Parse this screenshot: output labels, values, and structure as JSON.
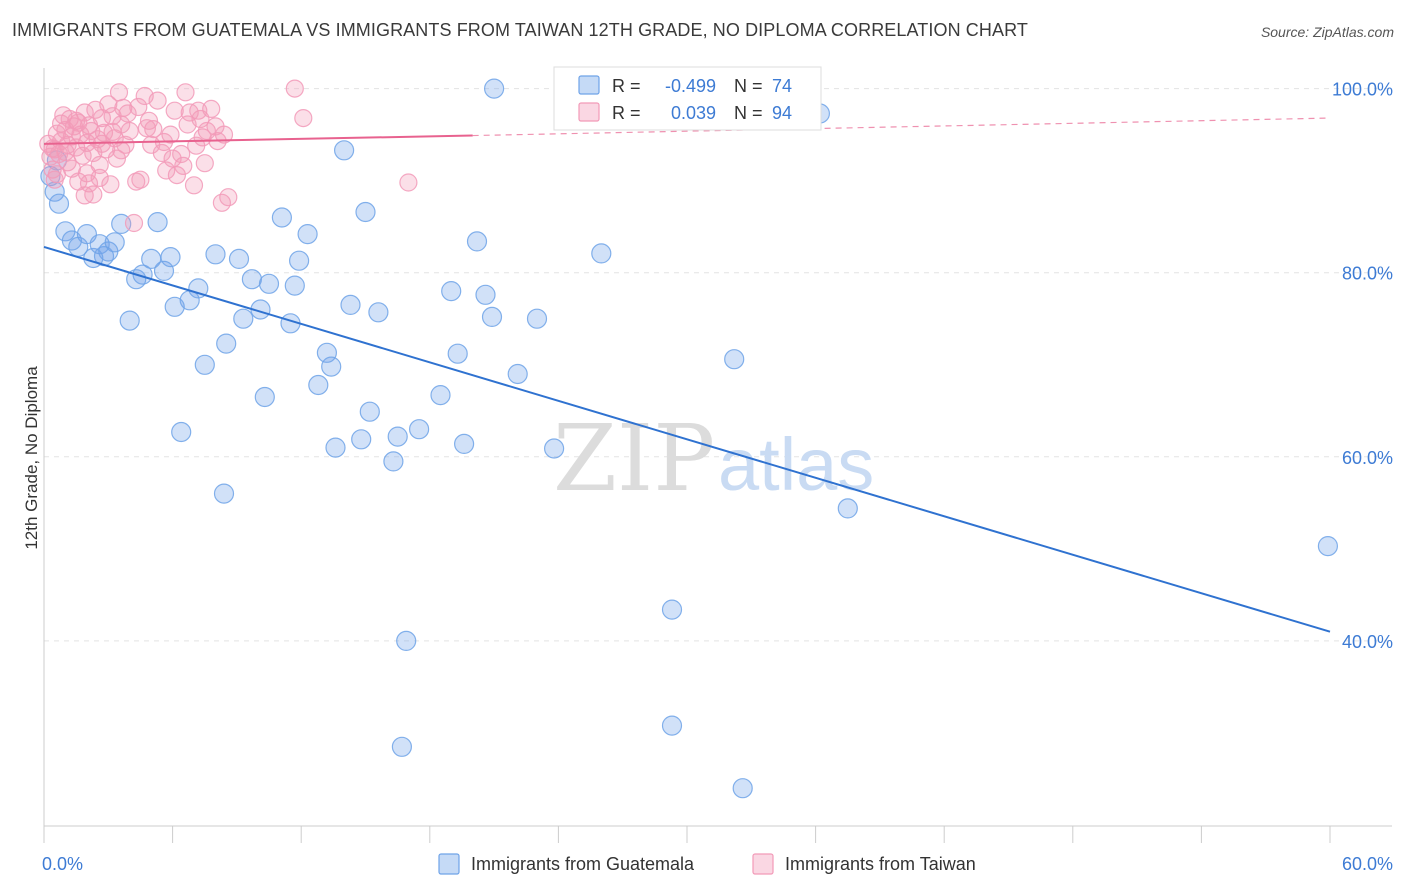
{
  "title": "IMMIGRANTS FROM GUATEMALA VS IMMIGRANTS FROM TAIWAN 12TH GRADE, NO DIPLOMA CORRELATION CHART",
  "source": "Source: ZipAtlas.com",
  "watermark": {
    "zip": "ZIP",
    "atlas": "atlas"
  },
  "colors": {
    "guatemala": "#6fa3e8",
    "guatemala_line": "#2f72d0",
    "taiwan": "#f29ab8",
    "taiwan_line": "#e8628f",
    "axis_text": "#3d7bd4"
  },
  "legend": {
    "r_label": "R =",
    "n_label": "N =",
    "rows": [
      {
        "series": "guatemala",
        "r": "-0.499",
        "n": "74"
      },
      {
        "series": "taiwan",
        "r": "0.039",
        "n": "94"
      }
    ]
  },
  "chart_data": {
    "type": "scatter",
    "title": "IMMIGRANTS FROM GUATEMALA VS IMMIGRANTS FROM TAIWAN 12TH GRADE, NO DIPLOMA CORRELATION CHART",
    "xlabel": "",
    "ylabel": "12th Grade, No Diploma",
    "xlim": [
      0,
      60
    ],
    "ylim": [
      20,
      103
    ],
    "x_tick_labels": [
      "0.0%",
      "60.0%"
    ],
    "y_ticks": [
      40,
      60,
      80,
      100
    ],
    "y_tick_labels": [
      "40.0%",
      "60.0%",
      "80.0%",
      "100.0%"
    ],
    "grid": true,
    "legend_position": "top-center",
    "series": [
      {
        "name": "Immigrants from Guatemala",
        "color": "#6fa3e8",
        "trend": {
          "x": [
            0,
            60
          ],
          "y": [
            82.8,
            41.0
          ]
        },
        "points": [
          [
            0.3,
            90.5
          ],
          [
            0.5,
            88.8
          ],
          [
            0.7,
            87.5
          ],
          [
            1.0,
            84.5
          ],
          [
            1.3,
            83.5
          ],
          [
            1.6,
            82.8
          ],
          [
            2.0,
            84.2
          ],
          [
            2.3,
            81.6
          ],
          [
            2.6,
            83.1
          ],
          [
            2.8,
            81.8
          ],
          [
            3.0,
            82.3
          ],
          [
            3.3,
            83.3
          ],
          [
            3.6,
            85.3
          ],
          [
            4.0,
            74.8
          ],
          [
            4.3,
            79.3
          ],
          [
            4.6,
            79.8
          ],
          [
            5.0,
            81.5
          ],
          [
            5.3,
            85.5
          ],
          [
            5.6,
            80.2
          ],
          [
            5.9,
            81.7
          ],
          [
            6.1,
            76.3
          ],
          [
            6.4,
            62.7
          ],
          [
            6.8,
            77.0
          ],
          [
            7.2,
            78.3
          ],
          [
            7.5,
            70.0
          ],
          [
            8.0,
            82.0
          ],
          [
            8.5,
            72.3
          ],
          [
            8.4,
            56.0
          ],
          [
            9.1,
            81.5
          ],
          [
            9.3,
            75.0
          ],
          [
            9.7,
            79.3
          ],
          [
            10.1,
            76.0
          ],
          [
            10.3,
            66.5
          ],
          [
            10.5,
            78.8
          ],
          [
            11.1,
            86.0
          ],
          [
            11.5,
            74.5
          ],
          [
            11.7,
            78.6
          ],
          [
            11.9,
            81.3
          ],
          [
            12.3,
            84.2
          ],
          [
            12.8,
            67.8
          ],
          [
            13.2,
            71.3
          ],
          [
            13.4,
            69.8
          ],
          [
            13.6,
            61.0
          ],
          [
            14.0,
            93.3
          ],
          [
            14.3,
            76.5
          ],
          [
            14.8,
            61.9
          ],
          [
            15.0,
            86.6
          ],
          [
            15.2,
            64.9
          ],
          [
            15.6,
            75.7
          ],
          [
            16.3,
            59.5
          ],
          [
            16.5,
            62.2
          ],
          [
            16.7,
            28.5
          ],
          [
            16.9,
            40.0
          ],
          [
            17.5,
            63.0
          ],
          [
            18.5,
            66.7
          ],
          [
            19.0,
            78.0
          ],
          [
            19.3,
            71.2
          ],
          [
            19.6,
            61.4
          ],
          [
            20.2,
            83.4
          ],
          [
            20.6,
            77.6
          ],
          [
            20.9,
            75.2
          ],
          [
            21.0,
            100.0
          ],
          [
            22.1,
            69.0
          ],
          [
            23.0,
            75.0
          ],
          [
            23.8,
            60.9
          ],
          [
            26.0,
            82.1
          ],
          [
            29.3,
            43.4
          ],
          [
            29.3,
            30.8
          ],
          [
            32.2,
            70.6
          ],
          [
            32.6,
            24.0
          ],
          [
            36.2,
            97.3
          ],
          [
            37.5,
            54.4
          ],
          [
            59.9,
            50.3
          ],
          [
            0.6,
            92.2
          ]
        ]
      },
      {
        "name": "Immigrants from Taiwan",
        "color": "#f29ab8",
        "trend": {
          "x": [
            0,
            20
          ],
          "y": [
            94.0,
            94.9
          ]
        },
        "trend_dashed": {
          "x": [
            20,
            60
          ],
          "y": [
            94.9,
            96.8
          ]
        },
        "points": [
          [
            0.2,
            94.0
          ],
          [
            0.3,
            92.6
          ],
          [
            0.4,
            91.2
          ],
          [
            0.5,
            90.1
          ],
          [
            0.5,
            93.4
          ],
          [
            0.6,
            95.1
          ],
          [
            0.7,
            92.9
          ],
          [
            0.8,
            96.2
          ],
          [
            0.8,
            94.3
          ],
          [
            0.9,
            97.1
          ],
          [
            1.0,
            95.5
          ],
          [
            1.0,
            93.1
          ],
          [
            1.1,
            92.0
          ],
          [
            1.2,
            96.7
          ],
          [
            1.3,
            94.8
          ],
          [
            1.3,
            91.3
          ],
          [
            1.4,
            95.9
          ],
          [
            1.5,
            93.6
          ],
          [
            1.6,
            96.3
          ],
          [
            1.6,
            89.9
          ],
          [
            1.7,
            95.0
          ],
          [
            1.8,
            92.7
          ],
          [
            1.9,
            97.4
          ],
          [
            2.0,
            94.1
          ],
          [
            2.0,
            90.8
          ],
          [
            2.1,
            96.0
          ],
          [
            2.2,
            95.4
          ],
          [
            2.3,
            93.0
          ],
          [
            2.3,
            88.5
          ],
          [
            2.4,
            97.7
          ],
          [
            2.5,
            94.5
          ],
          [
            2.6,
            91.7
          ],
          [
            2.7,
            96.8
          ],
          [
            2.8,
            95.2
          ],
          [
            2.9,
            93.4
          ],
          [
            3.0,
            98.3
          ],
          [
            3.1,
            89.6
          ],
          [
            3.2,
            97.0
          ],
          [
            3.3,
            94.6
          ],
          [
            3.4,
            92.4
          ],
          [
            3.5,
            99.6
          ],
          [
            3.6,
            96.1
          ],
          [
            3.8,
            93.9
          ],
          [
            3.9,
            97.3
          ],
          [
            4.0,
            95.4
          ],
          [
            4.2,
            85.4
          ],
          [
            4.4,
            98.0
          ],
          [
            4.5,
            90.1
          ],
          [
            4.7,
            99.2
          ],
          [
            4.9,
            96.5
          ],
          [
            5.1,
            95.6
          ],
          [
            5.3,
            98.7
          ],
          [
            5.5,
            93.0
          ],
          [
            5.7,
            91.1
          ],
          [
            5.9,
            95.0
          ],
          [
            6.1,
            97.6
          ],
          [
            6.2,
            90.6
          ],
          [
            6.4,
            92.9
          ],
          [
            6.6,
            99.6
          ],
          [
            6.8,
            97.4
          ],
          [
            7.0,
            89.5
          ],
          [
            7.1,
            93.8
          ],
          [
            7.3,
            96.7
          ],
          [
            7.5,
            91.9
          ],
          [
            7.8,
            97.8
          ],
          [
            8.1,
            94.3
          ],
          [
            8.4,
            95.0
          ],
          [
            8.6,
            88.2
          ],
          [
            8.0,
            95.9
          ],
          [
            1.9,
            88.4
          ],
          [
            2.1,
            89.7
          ],
          [
            2.6,
            90.3
          ],
          [
            3.2,
            95.3
          ],
          [
            3.6,
            93.3
          ],
          [
            4.3,
            89.9
          ],
          [
            5.0,
            93.9
          ],
          [
            6.0,
            92.4
          ],
          [
            6.5,
            91.6
          ],
          [
            7.2,
            97.6
          ],
          [
            7.6,
            95.4
          ],
          [
            8.3,
            87.6
          ],
          [
            11.7,
            100.0
          ],
          [
            12.1,
            96.8
          ],
          [
            17.0,
            89.8
          ],
          [
            0.4,
            93.5
          ],
          [
            1.5,
            96.5
          ],
          [
            2.7,
            94.0
          ],
          [
            3.7,
            97.9
          ],
          [
            4.8,
            95.7
          ],
          [
            5.6,
            94.2
          ],
          [
            6.7,
            96.1
          ],
          [
            7.4,
            94.7
          ],
          [
            1.1,
            93.9
          ],
          [
            0.6,
            90.7
          ]
        ]
      }
    ]
  },
  "bottom_legend": [
    {
      "series": "guatemala",
      "label": "Immigrants from Guatemala"
    },
    {
      "series": "taiwan",
      "label": "Immigrants from Taiwan"
    }
  ]
}
